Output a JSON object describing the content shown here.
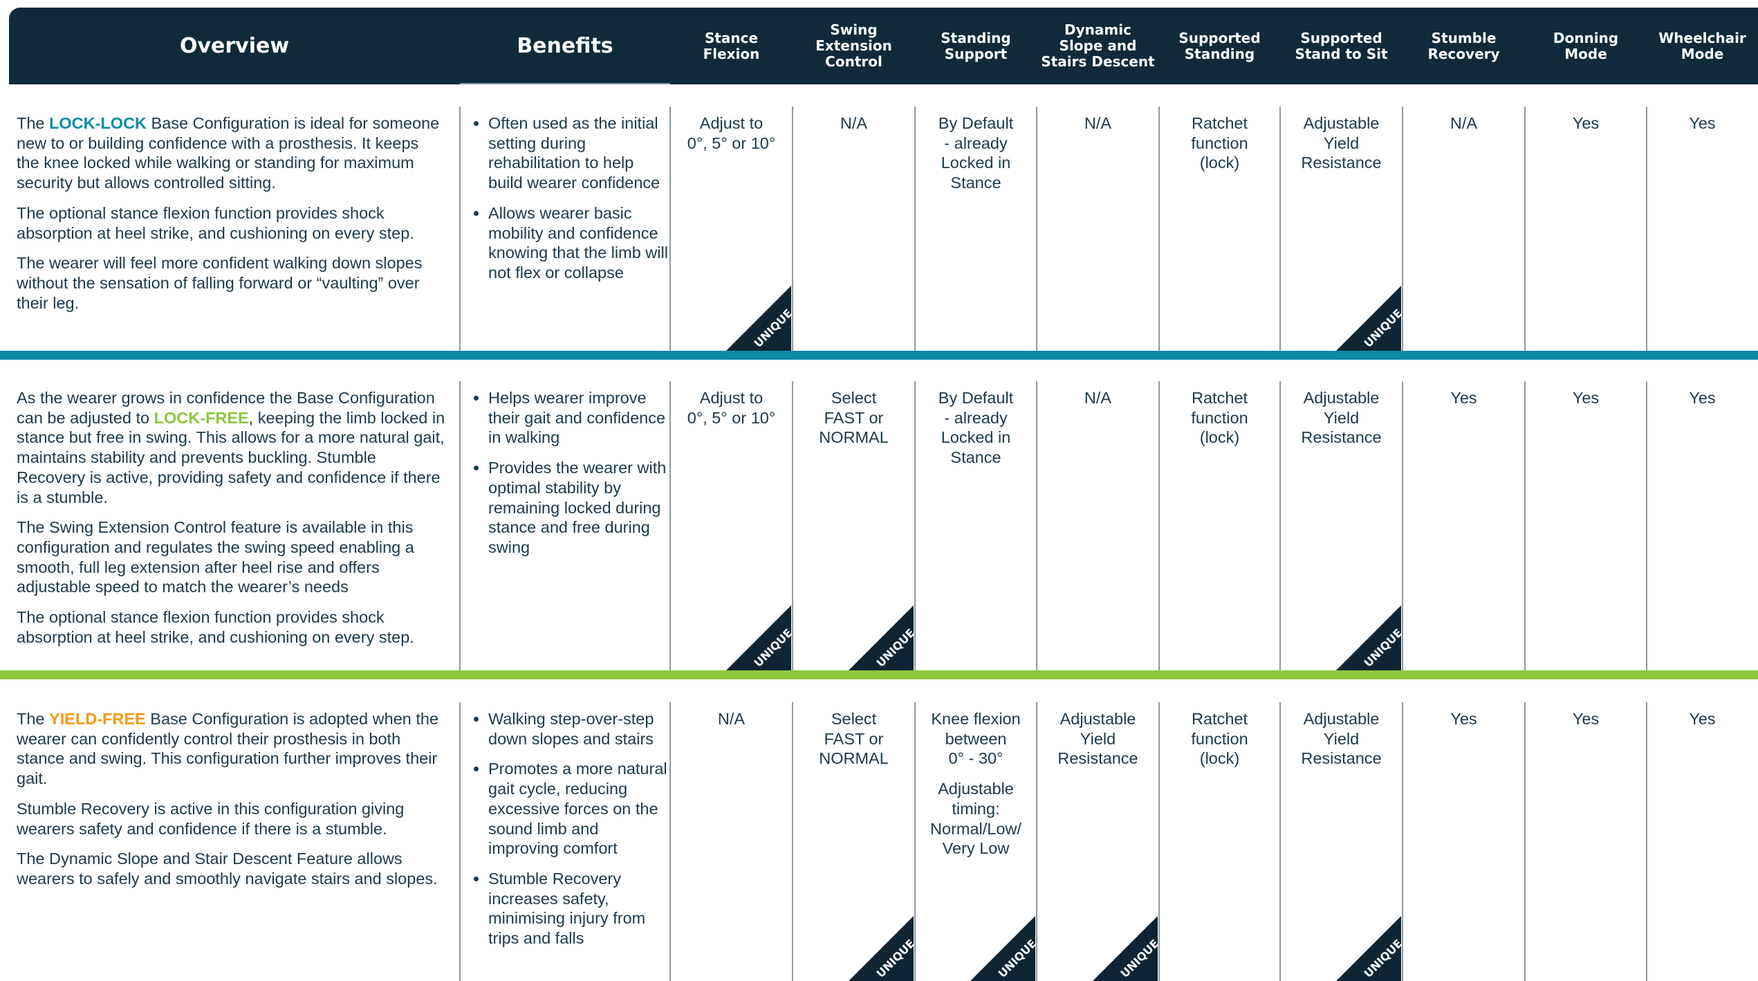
{
  "header": {
    "columns": [
      [
        "Overview"
      ],
      [
        "Benefits"
      ],
      [
        "Stance",
        "Flexion"
      ],
      [
        "Swing",
        "Extension",
        "Control"
      ],
      [
        "Standing",
        "Support"
      ],
      [
        "Dynamic",
        "Slope and",
        "Stairs Descent"
      ],
      [
        "Supported",
        "Standing"
      ],
      [
        "Supported",
        "Stand to Sit"
      ],
      [
        "Stumble",
        "Recovery"
      ],
      [
        "Donning",
        "Mode"
      ],
      [
        "Wheelchair",
        "Mode"
      ]
    ]
  },
  "badge_label": "UNIQUE",
  "rows": [
    {
      "band_color": "#0e8aa3",
      "overview": [
        {
          "before": "The ",
          "keyword": "LOCK-LOCK",
          "color": "#0e8ca5",
          "after": " Base Configuration is ideal for someone new to or building confidence with a prosthesis. It keeps the knee locked while walking or standing for maximum security but allows controlled sitting."
        },
        "The optional stance flexion function provides shock absorption at heel strike, and cushioning on every step.",
        "The wearer will feel more confident walking down slopes without the sensation of falling forward or “vaulting” over their leg."
      ],
      "benefits": [
        "Often used as the initial setting during rehabilitation to help build wearer confidence",
        "Allows wearer basic mobility and confidence knowing that the limb will not flex or collapse"
      ],
      "cells": [
        {
          "paragraphs": [
            [
              "Adjust to",
              "0°, 5° or 10°"
            ]
          ],
          "unique": true
        },
        {
          "paragraphs": [
            [
              "N/A"
            ]
          ],
          "unique": false
        },
        {
          "paragraphs": [
            [
              "By Default",
              "- already",
              "Locked in",
              "Stance"
            ]
          ],
          "unique": false
        },
        {
          "paragraphs": [
            [
              "N/A"
            ]
          ],
          "unique": false
        },
        {
          "paragraphs": [
            [
              "Ratchet",
              "function",
              "(lock)"
            ]
          ],
          "unique": false
        },
        {
          "paragraphs": [
            [
              "Adjustable",
              "Yield",
              "Resistance"
            ]
          ],
          "unique": true
        },
        {
          "paragraphs": [
            [
              "N/A"
            ]
          ],
          "unique": false
        },
        {
          "paragraphs": [
            [
              "Yes"
            ]
          ],
          "unique": false
        },
        {
          "paragraphs": [
            [
              "Yes"
            ]
          ],
          "unique": false
        }
      ]
    },
    {
      "band_color": "#8dc63f",
      "overview": [
        {
          "before": "As the wearer grows in confidence the Base Configuration can be adjusted to ",
          "keyword": "LOCK-FREE",
          "color": "#8dc63f",
          "after": ", keeping the limb locked in stance but free in swing. This allows for a more natural gait, maintains stability and prevents buckling. Stumble Recovery is active, providing safety and confidence if there is a stumble."
        },
        "The Swing Extension Control feature is available in this configuration and regulates the swing speed enabling a smooth, full leg extension after heel rise and offers adjustable speed to match the wearer’s needs",
        "The optional stance flexion function provides shock absorption at heel strike, and cushioning on every step."
      ],
      "benefits": [
        "Helps wearer improve their gait and confidence in walking",
        "Provides the wearer with optimal stability by remaining locked during stance and free during swing"
      ],
      "cells": [
        {
          "paragraphs": [
            [
              "Adjust to",
              "0°, 5° or 10°"
            ]
          ],
          "unique": true
        },
        {
          "paragraphs": [
            [
              "Select",
              "FAST or",
              "NORMAL"
            ]
          ],
          "unique": true
        },
        {
          "paragraphs": [
            [
              "By Default",
              "- already",
              "Locked in",
              "Stance"
            ]
          ],
          "unique": false
        },
        {
          "paragraphs": [
            [
              "N/A"
            ]
          ],
          "unique": false
        },
        {
          "paragraphs": [
            [
              "Ratchet",
              "function",
              "(lock)"
            ]
          ],
          "unique": false
        },
        {
          "paragraphs": [
            [
              "Adjustable",
              "Yield",
              "Resistance"
            ]
          ],
          "unique": true
        },
        {
          "paragraphs": [
            [
              "Yes"
            ]
          ],
          "unique": false
        },
        {
          "paragraphs": [
            [
              "Yes"
            ]
          ],
          "unique": false
        },
        {
          "paragraphs": [
            [
              "Yes"
            ]
          ],
          "unique": false
        }
      ]
    },
    {
      "overview": [
        {
          "before": "The ",
          "keyword": "YIELD-FREE",
          "color": "#f29a17",
          "after": " Base Configuration is adopted when the wearer can confidently control their prosthesis in both stance and swing. This configuration further improves their gait."
        },
        "Stumble Recovery is active in this configuration giving wearers safety and confidence if there is a stumble.",
        "The Dynamic Slope and Stair Descent Feature allows wearers to safely and smoothly navigate stairs and slopes."
      ],
      "benefits": [
        "Walking step-over-step down slopes and stairs",
        "Promotes a more natural gait cycle, reducing excessive forces on the sound limb and improving comfort",
        "Stumble Recovery increases safety, minimising injury from trips and falls"
      ],
      "cells": [
        {
          "paragraphs": [
            [
              "N/A"
            ]
          ],
          "unique": false
        },
        {
          "paragraphs": [
            [
              "Select",
              "FAST or",
              "NORMAL"
            ]
          ],
          "unique": true
        },
        {
          "paragraphs": [
            [
              "Knee flexion",
              "between",
              "0° - 30°"
            ],
            [
              "Adjustable",
              "timing:",
              "Normal/Low/",
              "Very Low"
            ]
          ],
          "unique": true
        },
        {
          "paragraphs": [
            [
              "Adjustable",
              "Yield",
              "Resistance"
            ]
          ],
          "unique": true
        },
        {
          "paragraphs": [
            [
              "Ratchet",
              "function",
              "(lock)"
            ]
          ],
          "unique": false
        },
        {
          "paragraphs": [
            [
              "Adjustable",
              "Yield",
              "Resistance"
            ]
          ],
          "unique": true
        },
        {
          "paragraphs": [
            [
              "Yes"
            ]
          ],
          "unique": false
        },
        {
          "paragraphs": [
            [
              "Yes"
            ]
          ],
          "unique": false
        },
        {
          "paragraphs": [
            [
              "Yes"
            ]
          ],
          "unique": false
        }
      ]
    }
  ]
}
